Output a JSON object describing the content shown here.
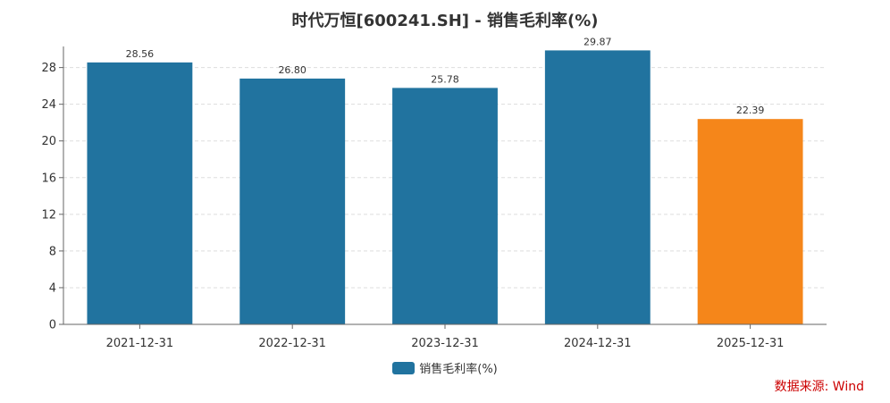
{
  "chart_data": {
    "type": "bar",
    "title": "时代万恒[600241.SH] - 销售毛利率(%)",
    "categories": [
      "2021-12-31",
      "2022-12-31",
      "2023-12-31",
      "2024-12-31",
      "2025-12-31"
    ],
    "series": [
      {
        "name": "销售毛利率(%)",
        "values": [
          28.56,
          26.8,
          25.78,
          29.87,
          22.39
        ]
      }
    ],
    "data_labels": [
      "28.56",
      "26.80",
      "25.78",
      "29.87",
      "22.39"
    ],
    "y_ticks": [
      0,
      4,
      8,
      12,
      16,
      20,
      24,
      28
    ],
    "ylim": [
      0,
      30.3
    ],
    "grid": true,
    "legend_position": "bottom",
    "colors": {
      "primary": "#21739f",
      "highlight": "#f5861a",
      "grid": "#dddddd",
      "axis": "#666666"
    },
    "highlight_index": 4
  },
  "source_note": "数据来源: Wind"
}
